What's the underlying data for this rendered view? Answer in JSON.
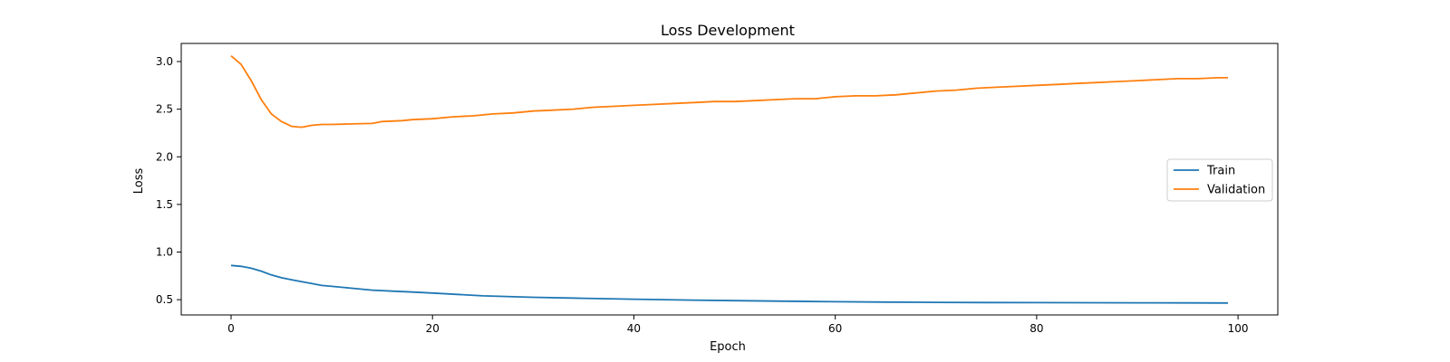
{
  "chart_data": {
    "type": "line",
    "title": "Loss Development",
    "xlabel": "Epoch",
    "ylabel": "Loss",
    "xlim": [
      -4.95,
      103.95
    ],
    "ylim": [
      0.34,
      3.19
    ],
    "xticks": [
      0,
      20,
      40,
      60,
      80,
      100
    ],
    "yticks": [
      0.5,
      1.0,
      1.5,
      2.0,
      2.5,
      3.0
    ],
    "xtick_labels": [
      "0",
      "20",
      "40",
      "60",
      "80",
      "100"
    ],
    "ytick_labels": [
      "0.5",
      "1.0",
      "1.5",
      "2.0",
      "2.5",
      "3.0"
    ],
    "grid": false,
    "legend_position": "center-right",
    "series": [
      {
        "name": "Train",
        "color": "#1f77b4",
        "x": [
          0,
          1,
          2,
          3,
          4,
          5,
          6,
          7,
          8,
          9,
          10,
          12,
          14,
          16,
          18,
          20,
          25,
          30,
          35,
          40,
          45,
          50,
          55,
          60,
          65,
          70,
          75,
          80,
          85,
          90,
          95,
          99
        ],
        "y": [
          0.86,
          0.85,
          0.83,
          0.8,
          0.76,
          0.73,
          0.71,
          0.69,
          0.67,
          0.65,
          0.64,
          0.62,
          0.6,
          0.59,
          0.58,
          0.57,
          0.54,
          0.525,
          0.515,
          0.505,
          0.497,
          0.49,
          0.484,
          0.479,
          0.475,
          0.472,
          0.47,
          0.469,
          0.468,
          0.467,
          0.466,
          0.465
        ]
      },
      {
        "name": "Validation",
        "color": "#ff7f0e",
        "x": [
          0,
          1,
          2,
          3,
          4,
          5,
          6,
          7,
          8,
          9,
          10,
          12,
          14,
          15,
          17,
          18,
          20,
          22,
          24,
          26,
          28,
          30,
          32,
          34,
          36,
          38,
          40,
          42,
          44,
          46,
          48,
          50,
          52,
          54,
          56,
          58,
          60,
          62,
          64,
          66,
          68,
          70,
          72,
          74,
          76,
          78,
          80,
          82,
          84,
          86,
          88,
          90,
          92,
          94,
          96,
          98,
          99
        ],
        "y": [
          3.06,
          2.97,
          2.8,
          2.6,
          2.45,
          2.37,
          2.32,
          2.31,
          2.33,
          2.34,
          2.34,
          2.345,
          2.35,
          2.37,
          2.38,
          2.39,
          2.4,
          2.42,
          2.43,
          2.45,
          2.46,
          2.48,
          2.49,
          2.5,
          2.52,
          2.53,
          2.54,
          2.55,
          2.56,
          2.57,
          2.58,
          2.58,
          2.59,
          2.6,
          2.61,
          2.61,
          2.63,
          2.64,
          2.64,
          2.65,
          2.67,
          2.69,
          2.7,
          2.72,
          2.73,
          2.74,
          2.75,
          2.76,
          2.77,
          2.78,
          2.79,
          2.8,
          2.81,
          2.82,
          2.82,
          2.83,
          2.83
        ]
      }
    ]
  }
}
